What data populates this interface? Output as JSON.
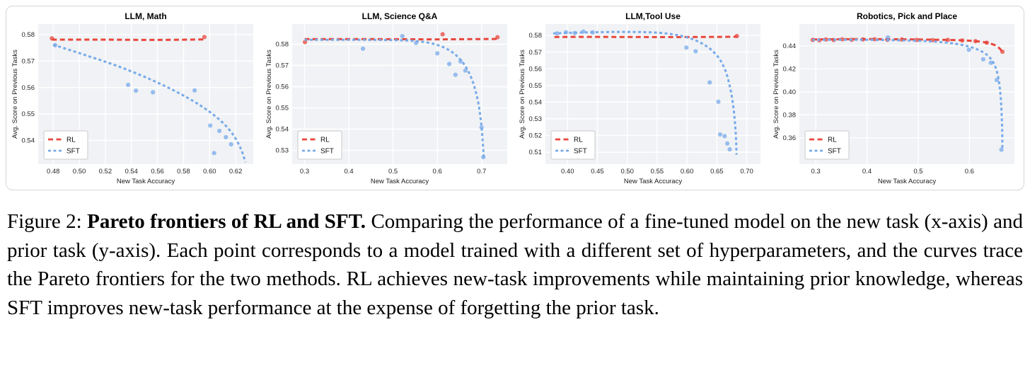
{
  "chart_data": {
    "type": "scatter",
    "shared": {
      "xlabel": "New Task Accuracy",
      "ylabel": "Avg. Score on Previous Tasks",
      "legend": [
        "RL",
        "SFT"
      ],
      "legend_position": "lower-left",
      "grid": true,
      "plot_bg": "#f0f2f5",
      "grid_color": "#ffffff",
      "colors": {
        "RL": "#e8463c",
        "SFT": "#78aae9"
      }
    },
    "panels": [
      {
        "id": "llm-math",
        "title": "LLM, Math",
        "xlim": [
          0.4685,
          0.6335
        ],
        "ylim": [
          0.531,
          0.584
        ],
        "xticks": [
          0.48,
          0.5,
          0.52,
          0.54,
          0.56,
          0.58,
          0.6,
          0.62
        ],
        "xtick_labels": [
          "0.48",
          "0.50",
          "0.52",
          "0.54",
          "0.56",
          "0.58",
          "0.60",
          "0.62"
        ],
        "yticks": [
          0.54,
          0.55,
          0.56,
          0.57,
          0.58
        ],
        "ytick_labels": [
          "0.54",
          "0.55",
          "0.56",
          "0.57",
          "0.58"
        ],
        "series": [
          {
            "name": "RL",
            "color": "#e8463c",
            "dash": [
              7,
              4.5
            ],
            "curve": [
              [
                0.479,
                0.5781
              ],
              [
                0.52,
                0.5781
              ],
              [
                0.558,
                0.578
              ],
              [
                0.596,
                0.5782
              ]
            ],
            "points": [
              [
                0.479,
                0.5786
              ],
              [
                0.596,
                0.5791
              ]
            ]
          },
          {
            "name": "SFT",
            "color": "#78aae9",
            "dash": [
              4,
              3.5
            ],
            "curve": [
              [
                0.48,
                0.5762
              ],
              [
                0.505,
                0.5722
              ],
              [
                0.53,
                0.568
              ],
              [
                0.555,
                0.563
              ],
              [
                0.578,
                0.5575
              ],
              [
                0.596,
                0.5522
              ],
              [
                0.609,
                0.5472
              ],
              [
                0.618,
                0.5422
              ],
              [
                0.624,
                0.5368
              ],
              [
                0.6275,
                0.5318
              ]
            ],
            "points": [
              [
                0.4815,
                0.576
              ],
              [
                0.5375,
                0.561
              ],
              [
                0.5435,
                0.5588
              ],
              [
                0.5565,
                0.5582
              ],
              [
                0.5885,
                0.5589
              ],
              [
                0.6005,
                0.5456
              ],
              [
                0.6075,
                0.5436
              ],
              [
                0.6125,
                0.5412
              ],
              [
                0.6165,
                0.5385
              ],
              [
                0.6035,
                0.5352
              ]
            ]
          }
        ]
      },
      {
        "id": "llm-science-qa",
        "title": "LLM, Science Q&A",
        "xlim": [
          0.272,
          0.758
        ],
        "ylim": [
          0.5235,
          0.5895
        ],
        "xticks": [
          0.3,
          0.4,
          0.5,
          0.6,
          0.7
        ],
        "xtick_labels": [
          "0.3",
          "0.4",
          "0.5",
          "0.6",
          "0.7"
        ],
        "yticks": [
          0.53,
          0.54,
          0.55,
          0.56,
          0.57,
          0.58
        ],
        "ytick_labels": [
          "0.53",
          "0.54",
          "0.55",
          "0.56",
          "0.57",
          "0.58"
        ],
        "series": [
          {
            "name": "RL",
            "color": "#e8463c",
            "dash": [
              7,
              4.5
            ],
            "curve": [
              [
                0.3,
                0.5824
              ],
              [
                0.45,
                0.5824
              ],
              [
                0.6,
                0.5823
              ],
              [
                0.736,
                0.5825
              ]
            ],
            "points": [
              [
                0.301,
                0.581
              ],
              [
                0.612,
                0.5847
              ],
              [
                0.736,
                0.5833
              ]
            ]
          },
          {
            "name": "SFT",
            "color": "#78aae9",
            "dash": [
              4,
              3.5
            ],
            "curve": [
              [
                0.3,
                0.5821
              ],
              [
                0.4,
                0.5821
              ],
              [
                0.48,
                0.582
              ],
              [
                0.545,
                0.5816
              ],
              [
                0.595,
                0.58
              ],
              [
                0.632,
                0.5765
              ],
              [
                0.659,
                0.571
              ],
              [
                0.678,
                0.5635
              ],
              [
                0.691,
                0.554
              ],
              [
                0.699,
                0.543
              ],
              [
                0.7035,
                0.5315
              ],
              [
                0.705,
                0.5265
              ]
            ],
            "points": [
              [
                0.432,
                0.5779
              ],
              [
                0.521,
                0.5838
              ],
              [
                0.552,
                0.5806
              ],
              [
                0.6,
                0.5757
              ],
              [
                0.627,
                0.5707
              ],
              [
                0.641,
                0.5656
              ],
              [
                0.6525,
                0.5719
              ],
              [
                0.6635,
                0.5676
              ],
              [
                0.7,
                0.5408
              ],
              [
                0.704,
                0.5268
              ]
            ]
          }
        ]
      },
      {
        "id": "llm-tool-use",
        "title": "LLM,Tool Use",
        "xlim": [
          0.363,
          0.723
        ],
        "ylim": [
          0.5028,
          0.5868
        ],
        "xticks": [
          0.4,
          0.45,
          0.5,
          0.55,
          0.6,
          0.65,
          0.7
        ],
        "xtick_labels": [
          "0.40",
          "0.45",
          "0.50",
          "0.55",
          "0.60",
          "0.65",
          "0.70"
        ],
        "yticks": [
          0.51,
          0.52,
          0.53,
          0.54,
          0.55,
          0.56,
          0.57,
          0.58
        ],
        "ytick_labels": [
          "0.51",
          "0.52",
          "0.53",
          "0.54",
          "0.55",
          "0.56",
          "0.57",
          "0.58"
        ],
        "series": [
          {
            "name": "RL",
            "color": "#e8463c",
            "dash": [
              7,
              4.5
            ],
            "curve": [
              [
                0.378,
                0.5791
              ],
              [
                0.48,
                0.5791
              ],
              [
                0.58,
                0.579
              ],
              [
                0.6835,
                0.5792
              ]
            ],
            "points": [
              [
                0.6835,
                0.5796
              ]
            ]
          },
          {
            "name": "SFT",
            "color": "#78aae9",
            "dash": [
              4,
              3.5
            ],
            "curve": [
              [
                0.376,
                0.5812
              ],
              [
                0.43,
                0.5818
              ],
              [
                0.5,
                0.5821
              ],
              [
                0.555,
                0.5815
              ],
              [
                0.595,
                0.5793
              ],
              [
                0.625,
                0.5752
              ],
              [
                0.6475,
                0.569
              ],
              [
                0.6625,
                0.5605
              ],
              [
                0.672,
                0.549
              ],
              [
                0.678,
                0.536
              ],
              [
                0.6815,
                0.5215
              ],
              [
                0.683,
                0.5085
              ]
            ],
            "points": [
              [
                0.3825,
                0.5812
              ],
              [
                0.3975,
                0.5819
              ],
              [
                0.412,
                0.5814
              ],
              [
                0.4265,
                0.5823
              ],
              [
                0.442,
                0.5818
              ],
              [
                0.599,
                0.5727
              ],
              [
                0.6145,
                0.5705
              ],
              [
                0.638,
                0.5518
              ],
              [
                0.6525,
                0.5402
              ],
              [
                0.6555,
                0.5206
              ],
              [
                0.663,
                0.5196
              ],
              [
                0.6675,
                0.5152
              ],
              [
                0.6715,
                0.5117
              ]
            ]
          }
        ]
      },
      {
        "id": "robotics-pick-place",
        "title": "Robotics, Pick and Place",
        "xlim": [
          0.268,
          0.688
        ],
        "ylim": [
          0.337,
          0.459
        ],
        "xticks": [
          0.3,
          0.4,
          0.5,
          0.6
        ],
        "xtick_labels": [
          "0.3",
          "0.4",
          "0.5",
          "0.6"
        ],
        "yticks": [
          0.36,
          0.38,
          0.4,
          0.42,
          0.44
        ],
        "ytick_labels": [
          "0.36",
          "0.38",
          "0.40",
          "0.42",
          "0.44"
        ],
        "series": [
          {
            "name": "RL",
            "color": "#e8463c",
            "dash": [
              7,
              4.5
            ],
            "curve": [
              [
                0.293,
                0.4456
              ],
              [
                0.35,
                0.4458
              ],
              [
                0.41,
                0.4459
              ],
              [
                0.47,
                0.4457
              ],
              [
                0.53,
                0.4454
              ],
              [
                0.575,
                0.445
              ],
              [
                0.61,
                0.4442
              ],
              [
                0.635,
                0.4427
              ],
              [
                0.6505,
                0.4405
              ],
              [
                0.659,
                0.4378
              ],
              [
                0.6635,
                0.4352
              ]
            ],
            "points": [
              [
                0.294,
                0.4452
              ],
              [
                0.307,
                0.4449
              ],
              [
                0.32,
                0.4456
              ],
              [
                0.335,
                0.4451
              ],
              [
                0.352,
                0.4457
              ],
              [
                0.37,
                0.4453
              ],
              [
                0.392,
                0.4456
              ],
              [
                0.415,
                0.4458
              ],
              [
                0.44,
                0.4453
              ],
              [
                0.468,
                0.4456
              ],
              [
                0.497,
                0.4452
              ],
              [
                0.528,
                0.445
              ],
              [
                0.558,
                0.4452
              ],
              [
                0.586,
                0.4447
              ],
              [
                0.612,
                0.4441
              ],
              [
                0.634,
                0.4428
              ],
              [
                0.6645,
                0.4349
              ]
            ]
          },
          {
            "name": "SFT",
            "color": "#78aae9",
            "dash": [
              4,
              3.5
            ],
            "curve": [
              [
                0.293,
                0.4452
              ],
              [
                0.36,
                0.4454
              ],
              [
                0.42,
                0.4452
              ],
              [
                0.475,
                0.4447
              ],
              [
                0.52,
                0.444
              ],
              [
                0.558,
                0.4427
              ],
              [
                0.592,
                0.4402
              ],
              [
                0.618,
                0.4365
              ],
              [
                0.636,
                0.4315
              ],
              [
                0.648,
                0.4245
              ],
              [
                0.6555,
                0.4145
              ],
              [
                0.66,
                0.401
              ],
              [
                0.6625,
                0.386
              ],
              [
                0.664,
                0.3675
              ],
              [
                0.6645,
                0.3495
              ]
            ],
            "points": [
              [
                0.441,
                0.4473
              ],
              [
                0.599,
                0.4366
              ],
              [
                0.627,
                0.4283
              ],
              [
                0.642,
                0.4253
              ],
              [
                0.6535,
                0.4103
              ],
              [
                0.6625,
                0.3496
              ]
            ]
          }
        ]
      }
    ]
  },
  "caption": {
    "label": "Figure 2:",
    "title": "Pareto frontiers of RL and SFT.",
    "body": "Comparing the performance of a fine-tuned model on the new task (x-axis) and prior task (y-axis).  Each point corresponds to a model trained with a different set of hyperparameters, and the curves trace the Pareto frontiers for the two methods.  RL achieves new-task improvements while maintaining prior knowledge, whereas SFT improves new-task performance at the expense of forgetting the prior task."
  }
}
